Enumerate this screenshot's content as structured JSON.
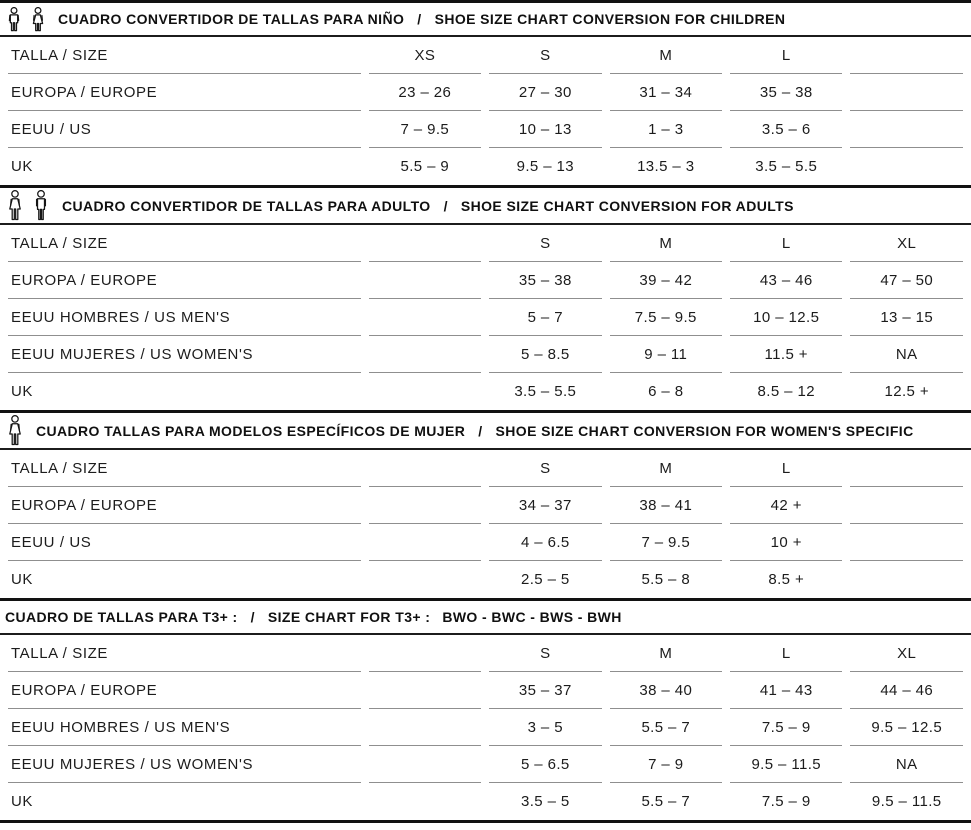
{
  "page": {
    "background": "#ffffff",
    "text_color": "#1c1c1c",
    "heavy_rule_color": "#121212",
    "row_rule_color": "#8f8f8f"
  },
  "sections": [
    {
      "id": "children",
      "icons": [
        "child-boy-icon",
        "child-girl-icon"
      ],
      "title_es": "CUADRO CONVERTIDOR DE TALLAS PARA NIÑO",
      "title_sep": "/",
      "title_en": "SHOE SIZE CHART CONVERSION FOR CHILDREN",
      "rows": [
        {
          "label": "TALLA / SIZE",
          "values": [
            "XS",
            "S",
            "M",
            "L",
            ""
          ]
        },
        {
          "label": "EUROPA / EUROPE",
          "values": [
            "23 – 26",
            "27 – 30",
            "31 – 34",
            "35 – 38",
            ""
          ]
        },
        {
          "label": "EEUU / US",
          "values": [
            "7 – 9.5",
            "10 – 13",
            "1 – 3",
            "3.5 – 6",
            ""
          ]
        },
        {
          "label": "UK",
          "values": [
            "5.5 – 9",
            "9.5 – 13",
            "13.5 – 3",
            "3.5 – 5.5",
            ""
          ]
        }
      ]
    },
    {
      "id": "adults",
      "icons": [
        "adult-woman-icon",
        "adult-man-icon"
      ],
      "title_es": "CUADRO CONVERTIDOR DE TALLAS PARA ADULTO",
      "title_sep": "/",
      "title_en": "SHOE SIZE CHART CONVERSION FOR ADULTS",
      "rows": [
        {
          "label": "TALLA / SIZE",
          "values": [
            "",
            "S",
            "M",
            "L",
            "XL"
          ]
        },
        {
          "label": "EUROPA / EUROPE",
          "values": [
            "",
            "35 – 38",
            "39 – 42",
            "43 – 46",
            "47 – 50"
          ]
        },
        {
          "label": "EEUU HOMBRES / US MEN'S",
          "values": [
            "",
            "5 – 7",
            "7.5 – 9.5",
            "10 – 12.5",
            "13 – 15"
          ]
        },
        {
          "label": "EEUU MUJERES / US WOMEN'S",
          "values": [
            "",
            "5 – 8.5",
            "9 – 11",
            "11.5 +",
            "NA"
          ]
        },
        {
          "label": "UK",
          "values": [
            "",
            "3.5 – 5.5",
            "6 – 8",
            "8.5 – 12",
            "12.5 +"
          ]
        }
      ]
    },
    {
      "id": "women-specific",
      "icons": [
        "adult-woman-icon"
      ],
      "title_es": "CUADRO TALLAS PARA MODELOS ESPECÍFICOS DE MUJER",
      "title_sep": "/",
      "title_en": "SHOE SIZE CHART CONVERSION FOR WOMEN'S SPECIFIC",
      "rows": [
        {
          "label": "TALLA / SIZE",
          "values": [
            "",
            "S",
            "M",
            "L",
            ""
          ]
        },
        {
          "label": "EUROPA / EUROPE",
          "values": [
            "",
            "34 – 37",
            "38 – 41",
            "42 +",
            ""
          ]
        },
        {
          "label": "EEUU / US",
          "values": [
            "",
            "4 – 6.5",
            "7 – 9.5",
            "10 +",
            ""
          ]
        },
        {
          "label": "UK",
          "values": [
            "",
            "2.5 – 5",
            "5.5 – 8",
            "8.5 +",
            ""
          ]
        }
      ]
    },
    {
      "id": "t3plus",
      "icons": [],
      "title_es": "CUADRO DE TALLAS PARA T3+ :",
      "title_sep": "/",
      "title_en": "SIZE CHART FOR T3+ :",
      "models": "BWO - BWC - BWS - BWH",
      "rows": [
        {
          "label": "TALLA / SIZE",
          "values": [
            "",
            "S",
            "M",
            "L",
            "XL"
          ]
        },
        {
          "label": "EUROPA / EUROPE",
          "values": [
            "",
            "35 – 37",
            "38 – 40",
            "41 – 43",
            "44 – 46"
          ]
        },
        {
          "label": "EEUU HOMBRES / US MEN'S",
          "values": [
            "",
            "3 – 5",
            "5.5 – 7",
            "7.5 – 9",
            "9.5 – 12.5"
          ]
        },
        {
          "label": "EEUU MUJERES / US WOMEN'S",
          "values": [
            "",
            "5 – 6.5",
            "7 – 9",
            "9.5 – 11.5",
            "NA"
          ]
        },
        {
          "label": "UK",
          "values": [
            "",
            "3.5 – 5",
            "5.5 – 7",
            "7.5 – 9",
            "9.5 – 11.5"
          ]
        }
      ]
    }
  ]
}
